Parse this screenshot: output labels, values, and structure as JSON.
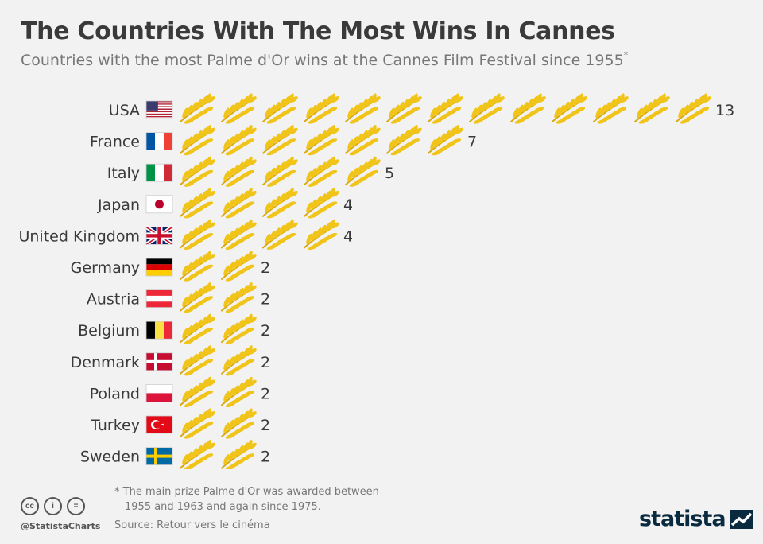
{
  "header": {
    "title": "The Countries With The Most Wins In Cannes",
    "subtitle": "Countries with the most Palme d'Or wins at the Cannes Film Festival since 1955",
    "subtitle_mark": "*"
  },
  "chart_data": {
    "type": "bar",
    "title": "The Countries With The Most Wins In Cannes",
    "subtitle": "Countries with the most Palme d'Or wins at the Cannes Film Festival since 1955*",
    "xlabel": "",
    "ylabel": "",
    "unit_icon": "palm-leaf-icon",
    "categories": [
      "USA",
      "France",
      "Italy",
      "Japan",
      "United Kingdom",
      "Germany",
      "Austria",
      "Belgium",
      "Denmark",
      "Poland",
      "Turkey",
      "Sweden"
    ],
    "values": [
      13,
      7,
      5,
      4,
      4,
      2,
      2,
      2,
      2,
      2,
      2,
      2
    ],
    "flags": [
      "usa-flag-icon",
      "france-flag-icon",
      "italy-flag-icon",
      "japan-flag-icon",
      "uk-flag-icon",
      "germany-flag-icon",
      "austria-flag-icon",
      "belgium-flag-icon",
      "denmark-flag-icon",
      "poland-flag-icon",
      "turkey-flag-icon",
      "sweden-flag-icon"
    ]
  },
  "colors": {
    "palm": "#f0c419",
    "palm_dark": "#d9a90f",
    "text": "#3a3a3a",
    "muted": "#777777",
    "background": "#f2f2f2",
    "brand": "#0a2a3f"
  },
  "footer": {
    "note_line1": "* The main prize Palme d'Or was awarded between",
    "note_line2": "1955 and 1963 and again since 1975.",
    "source": "Source: Retour vers le cinéma",
    "handle": "@StatistaCharts",
    "cc_icons": [
      "cc-icon",
      "by-icon",
      "nd-icon"
    ],
    "cc_glyphs": [
      "cc",
      "i",
      "="
    ],
    "brand": "statista"
  }
}
